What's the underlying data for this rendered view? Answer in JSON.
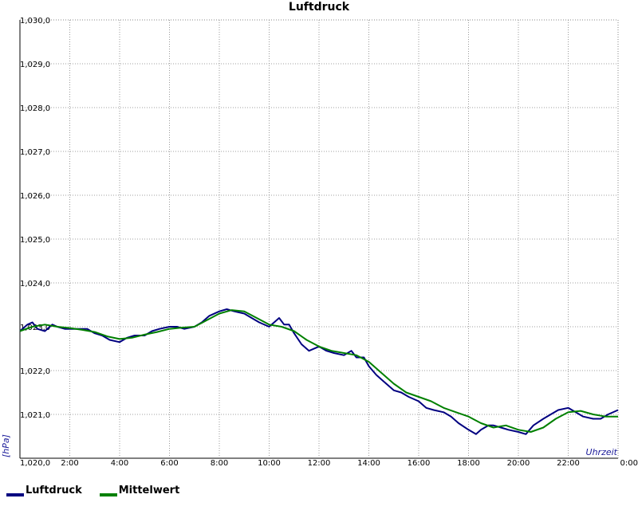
{
  "chart_data": {
    "type": "line",
    "title": "Luftdruck",
    "ylabel": "[hPa]",
    "xlabel": "Uhrzeit",
    "ylim": [
      1020.0,
      1030.0
    ],
    "xlim": [
      0,
      24
    ],
    "grid": true,
    "legend_position": "bottom-left",
    "y_ticks": [
      "1,020,0",
      "1,021,0",
      "1,022,0",
      "1,023,0",
      "1,024,0",
      "1,025,0",
      "1,026,0",
      "1,027,0",
      "1,028,0",
      "1,029,0",
      "1,030,0"
    ],
    "x_ticks": [
      "2:00",
      "4:00",
      "6:00",
      "8:00",
      "10:00",
      "12:00",
      "14:00",
      "16:00",
      "18:00",
      "20:00",
      "22:00",
      "0:00"
    ],
    "series": [
      {
        "name": "Luftdruck",
        "color": "#000080",
        "x": [
          0.0,
          0.3,
          0.5,
          0.7,
          1.0,
          1.3,
          1.5,
          1.8,
          2.0,
          2.3,
          2.7,
          3.0,
          3.3,
          3.6,
          4.0,
          4.3,
          4.6,
          5.0,
          5.3,
          5.6,
          6.0,
          6.3,
          6.6,
          7.0,
          7.3,
          7.6,
          8.0,
          8.3,
          8.6,
          9.0,
          9.3,
          9.6,
          10.0,
          10.2,
          10.4,
          10.6,
          10.8,
          11.0,
          11.3,
          11.6,
          12.0,
          12.3,
          12.6,
          13.0,
          13.3,
          13.5,
          13.8,
          14.0,
          14.3,
          14.6,
          15.0,
          15.3,
          15.6,
          16.0,
          16.3,
          16.6,
          17.0,
          17.3,
          17.6,
          18.0,
          18.3,
          18.5,
          18.8,
          19.0,
          19.3,
          19.6,
          20.0,
          20.3,
          20.6,
          21.0,
          21.3,
          21.6,
          22.0,
          22.3,
          22.6,
          23.0,
          23.3,
          23.6,
          24.0
        ],
        "values": [
          1022.9,
          1023.05,
          1023.1,
          1022.95,
          1022.9,
          1023.05,
          1023.0,
          1022.95,
          1022.95,
          1022.95,
          1022.95,
          1022.85,
          1022.8,
          1022.7,
          1022.65,
          1022.75,
          1022.8,
          1022.8,
          1022.9,
          1022.95,
          1023.0,
          1023.0,
          1022.95,
          1023.0,
          1023.1,
          1023.25,
          1023.35,
          1023.4,
          1023.35,
          1023.3,
          1023.2,
          1023.1,
          1023.0,
          1023.1,
          1023.2,
          1023.05,
          1023.05,
          1022.85,
          1022.6,
          1022.45,
          1022.55,
          1022.45,
          1022.4,
          1022.35,
          1022.45,
          1022.3,
          1022.3,
          1022.1,
          1021.9,
          1021.75,
          1021.55,
          1021.5,
          1021.4,
          1021.3,
          1021.15,
          1021.1,
          1021.05,
          1020.95,
          1020.8,
          1020.65,
          1020.55,
          1020.65,
          1020.75,
          1020.75,
          1020.7,
          1020.65,
          1020.6,
          1020.55,
          1020.75,
          1020.9,
          1021.0,
          1021.1,
          1021.15,
          1021.05,
          1020.95,
          1020.9,
          1020.9,
          1021.0,
          1021.1
        ]
      },
      {
        "name": "Mittelwert",
        "color": "#008000",
        "x": [
          0.0,
          0.5,
          1.0,
          1.5,
          2.0,
          2.5,
          3.0,
          3.5,
          4.0,
          4.5,
          5.0,
          5.5,
          6.0,
          6.5,
          7.0,
          7.5,
          8.0,
          8.5,
          9.0,
          9.5,
          10.0,
          10.5,
          11.0,
          11.5,
          12.0,
          12.5,
          13.0,
          13.5,
          14.0,
          14.5,
          15.0,
          15.5,
          16.0,
          16.5,
          17.0,
          17.5,
          18.0,
          18.5,
          19.0,
          19.5,
          20.0,
          20.5,
          21.0,
          21.5,
          22.0,
          22.5,
          23.0,
          23.5,
          24.0
        ],
        "values": [
          1022.9,
          1023.0,
          1023.05,
          1023.0,
          1022.97,
          1022.93,
          1022.88,
          1022.78,
          1022.72,
          1022.75,
          1022.82,
          1022.88,
          1022.95,
          1022.98,
          1023.0,
          1023.15,
          1023.3,
          1023.38,
          1023.35,
          1023.2,
          1023.05,
          1023.0,
          1022.9,
          1022.7,
          1022.55,
          1022.45,
          1022.4,
          1022.35,
          1022.2,
          1021.95,
          1021.7,
          1021.5,
          1021.4,
          1021.3,
          1021.15,
          1021.05,
          1020.95,
          1020.8,
          1020.7,
          1020.75,
          1020.65,
          1020.6,
          1020.7,
          1020.9,
          1021.05,
          1021.08,
          1021.0,
          1020.95,
          1020.95
        ]
      }
    ]
  }
}
